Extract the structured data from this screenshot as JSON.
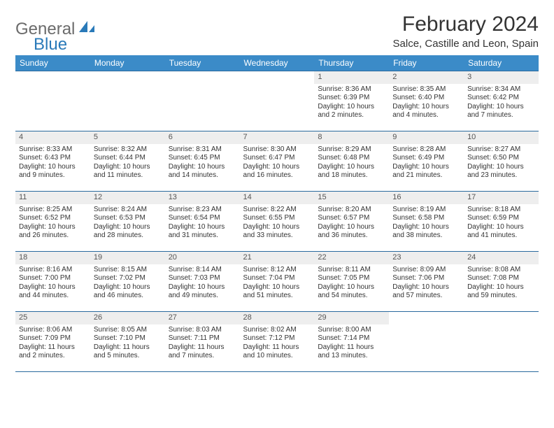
{
  "logo": {
    "part1": "General",
    "part2": "Blue"
  },
  "title": "February 2024",
  "location": "Salce, Castille and Leon, Spain",
  "colors": {
    "header_bg": "#3b8bc8",
    "header_text": "#ffffff",
    "rule": "#2a6a9e",
    "daynum_bg": "#eeeeee",
    "text": "#333333",
    "logo_gray": "#6b6b6b",
    "logo_blue": "#2a7ab9"
  },
  "day_names": [
    "Sunday",
    "Monday",
    "Tuesday",
    "Wednesday",
    "Thursday",
    "Friday",
    "Saturday"
  ],
  "weeks": [
    [
      null,
      null,
      null,
      null,
      {
        "n": "1",
        "sunrise": "8:36 AM",
        "sunset": "6:39 PM",
        "daylight": "10 hours and 2 minutes."
      },
      {
        "n": "2",
        "sunrise": "8:35 AM",
        "sunset": "6:40 PM",
        "daylight": "10 hours and 4 minutes."
      },
      {
        "n": "3",
        "sunrise": "8:34 AM",
        "sunset": "6:42 PM",
        "daylight": "10 hours and 7 minutes."
      }
    ],
    [
      {
        "n": "4",
        "sunrise": "8:33 AM",
        "sunset": "6:43 PM",
        "daylight": "10 hours and 9 minutes."
      },
      {
        "n": "5",
        "sunrise": "8:32 AM",
        "sunset": "6:44 PM",
        "daylight": "10 hours and 11 minutes."
      },
      {
        "n": "6",
        "sunrise": "8:31 AM",
        "sunset": "6:45 PM",
        "daylight": "10 hours and 14 minutes."
      },
      {
        "n": "7",
        "sunrise": "8:30 AM",
        "sunset": "6:47 PM",
        "daylight": "10 hours and 16 minutes."
      },
      {
        "n": "8",
        "sunrise": "8:29 AM",
        "sunset": "6:48 PM",
        "daylight": "10 hours and 18 minutes."
      },
      {
        "n": "9",
        "sunrise": "8:28 AM",
        "sunset": "6:49 PM",
        "daylight": "10 hours and 21 minutes."
      },
      {
        "n": "10",
        "sunrise": "8:27 AM",
        "sunset": "6:50 PM",
        "daylight": "10 hours and 23 minutes."
      }
    ],
    [
      {
        "n": "11",
        "sunrise": "8:25 AM",
        "sunset": "6:52 PM",
        "daylight": "10 hours and 26 minutes."
      },
      {
        "n": "12",
        "sunrise": "8:24 AM",
        "sunset": "6:53 PM",
        "daylight": "10 hours and 28 minutes."
      },
      {
        "n": "13",
        "sunrise": "8:23 AM",
        "sunset": "6:54 PM",
        "daylight": "10 hours and 31 minutes."
      },
      {
        "n": "14",
        "sunrise": "8:22 AM",
        "sunset": "6:55 PM",
        "daylight": "10 hours and 33 minutes."
      },
      {
        "n": "15",
        "sunrise": "8:20 AM",
        "sunset": "6:57 PM",
        "daylight": "10 hours and 36 minutes."
      },
      {
        "n": "16",
        "sunrise": "8:19 AM",
        "sunset": "6:58 PM",
        "daylight": "10 hours and 38 minutes."
      },
      {
        "n": "17",
        "sunrise": "8:18 AM",
        "sunset": "6:59 PM",
        "daylight": "10 hours and 41 minutes."
      }
    ],
    [
      {
        "n": "18",
        "sunrise": "8:16 AM",
        "sunset": "7:00 PM",
        "daylight": "10 hours and 44 minutes."
      },
      {
        "n": "19",
        "sunrise": "8:15 AM",
        "sunset": "7:02 PM",
        "daylight": "10 hours and 46 minutes."
      },
      {
        "n": "20",
        "sunrise": "8:14 AM",
        "sunset": "7:03 PM",
        "daylight": "10 hours and 49 minutes."
      },
      {
        "n": "21",
        "sunrise": "8:12 AM",
        "sunset": "7:04 PM",
        "daylight": "10 hours and 51 minutes."
      },
      {
        "n": "22",
        "sunrise": "8:11 AM",
        "sunset": "7:05 PM",
        "daylight": "10 hours and 54 minutes."
      },
      {
        "n": "23",
        "sunrise": "8:09 AM",
        "sunset": "7:06 PM",
        "daylight": "10 hours and 57 minutes."
      },
      {
        "n": "24",
        "sunrise": "8:08 AM",
        "sunset": "7:08 PM",
        "daylight": "10 hours and 59 minutes."
      }
    ],
    [
      {
        "n": "25",
        "sunrise": "8:06 AM",
        "sunset": "7:09 PM",
        "daylight": "11 hours and 2 minutes."
      },
      {
        "n": "26",
        "sunrise": "8:05 AM",
        "sunset": "7:10 PM",
        "daylight": "11 hours and 5 minutes."
      },
      {
        "n": "27",
        "sunrise": "8:03 AM",
        "sunset": "7:11 PM",
        "daylight": "11 hours and 7 minutes."
      },
      {
        "n": "28",
        "sunrise": "8:02 AM",
        "sunset": "7:12 PM",
        "daylight": "11 hours and 10 minutes."
      },
      {
        "n": "29",
        "sunrise": "8:00 AM",
        "sunset": "7:14 PM",
        "daylight": "11 hours and 13 minutes."
      },
      null,
      null
    ]
  ],
  "labels": {
    "sunrise": "Sunrise: ",
    "sunset": "Sunset: ",
    "daylight": "Daylight: "
  }
}
